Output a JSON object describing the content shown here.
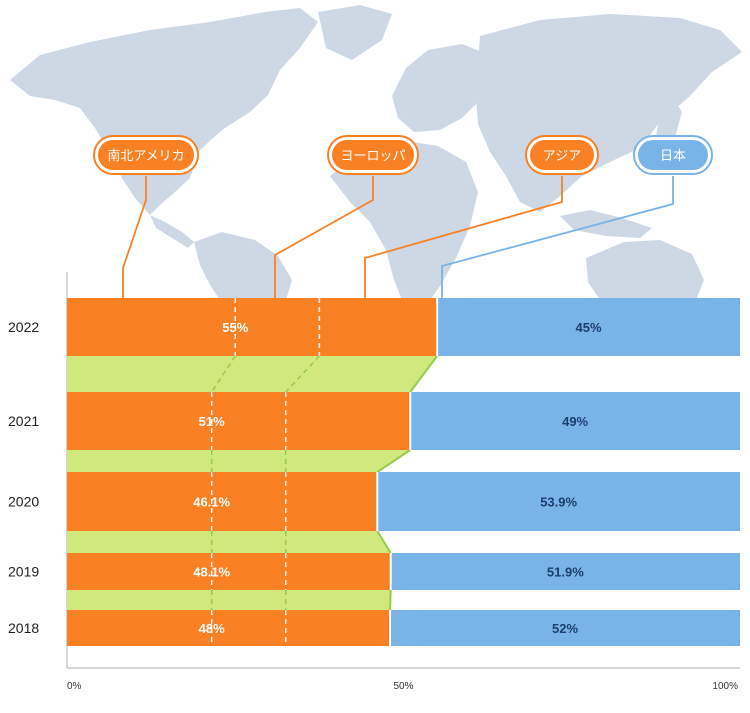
{
  "colors": {
    "overseas": "#fa8024",
    "japan": "#79b4e8",
    "connector": "#d0e87c",
    "connector_edge": "#96cc4a",
    "map": "#cdd8e4"
  },
  "callouts": [
    {
      "label": "南北アメリカ",
      "color": "#fa8024"
    },
    {
      "label": "ヨーロッパ",
      "color": "#fa8024"
    },
    {
      "label": "アジア",
      "color": "#fa8024"
    },
    {
      "label": "日本",
      "color": "#79b4e8"
    }
  ],
  "chart_data": {
    "type": "bar",
    "orientation": "horizontal",
    "stacked": true,
    "percent_stacked": true,
    "categories": [
      "2022",
      "2021",
      "2020",
      "2019",
      "2018"
    ],
    "series": [
      {
        "values": [
          55,
          51,
          46.1,
          48.1,
          48
        ],
        "labels": [
          "55%",
          "51%",
          "46.1%",
          "48.1%",
          "48%"
        ]
      },
      {
        "values": [
          45,
          49,
          53.9,
          51.9,
          52
        ],
        "labels": [
          "45%",
          "49%",
          "53.9%",
          "51.9%",
          "52%"
        ]
      }
    ],
    "overseas_breakdown_dividers": [
      [
        25,
        37.5
      ],
      [
        21.5,
        32.5
      ],
      [
        21.5,
        32.5
      ],
      [
        21.5,
        32.5
      ],
      [
        21.5,
        32.5
      ]
    ],
    "x_ticks": [
      "0%",
      "50%",
      "100%"
    ],
    "xlim": [
      0,
      100
    ]
  }
}
